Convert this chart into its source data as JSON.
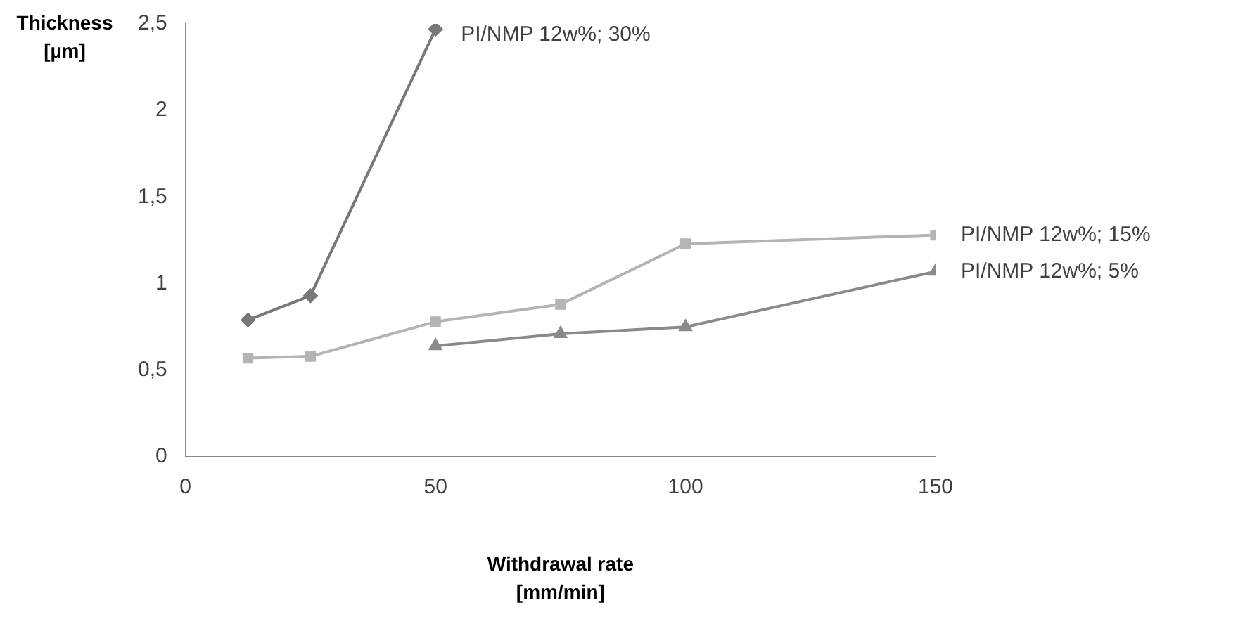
{
  "chart_data": {
    "type": "line",
    "xlabel": "Withdrawal rate\n[mm/min]",
    "ylabel": "Thickness\n[µm]",
    "xlim": [
      0,
      150
    ],
    "xticks": [
      0,
      50,
      100,
      150
    ],
    "ylim": [
      0,
      2.5
    ],
    "yticks": [
      0,
      {
        "value": 0.5,
        "label": "0,5"
      },
      1,
      {
        "value": 1.5,
        "label": "1,5"
      },
      2,
      {
        "value": 2.5,
        "label": "2,5"
      }
    ],
    "grid": false,
    "legend": false,
    "series": [
      {
        "name": "PI/NMP 12w%; 30%",
        "color": "#787878",
        "marker": "diamond",
        "x": [
          12.5,
          25,
          50
        ],
        "values": [
          0.79,
          0.93,
          2.47
        ]
      },
      {
        "name": "PI/NMP 12w%; 15%",
        "color": "#b4b4b4",
        "marker": "square",
        "x": [
          12.5,
          25,
          50,
          75,
          100,
          150
        ],
        "values": [
          0.57,
          0.58,
          0.78,
          0.88,
          1.23,
          1.28
        ]
      },
      {
        "name": "PI/NMP 12w%; 5%",
        "color": "#8a8a8a",
        "marker": "triangle",
        "x": [
          50,
          75,
          100,
          150
        ],
        "values": [
          0.64,
          0.71,
          0.75,
          1.07
        ]
      }
    ]
  }
}
